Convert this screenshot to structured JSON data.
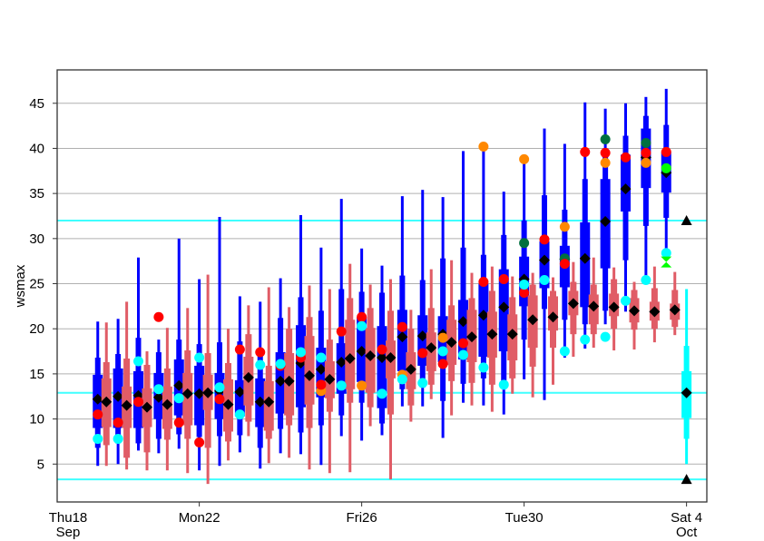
{
  "chart_data": {
    "type": "boxplot",
    "title": "",
    "ylabel": "wsmax",
    "xlabel": "",
    "ylim": [
      0.8,
      48.7
    ],
    "xlim": [
      "09-18T12",
      "10-04T12"
    ],
    "yticks": [
      5,
      10,
      15,
      20,
      25,
      30,
      35,
      40,
      45
    ],
    "xticks": [
      {
        "t": "09-18T12",
        "line1": "Thu18",
        "line2": "Sep"
      },
      {
        "t": "09-22T00",
        "line1": "Mon22",
        "line2": ""
      },
      {
        "t": "09-26T00",
        "line1": "Fri26",
        "line2": ""
      },
      {
        "t": "09-30T00",
        "line1": "Tue30",
        "line2": ""
      },
      {
        "t": "10-04T00",
        "line1": "Sat 4",
        "line2": "Oct"
      }
    ],
    "grid": true,
    "box_stat_order": [
      "min",
      "p10",
      "p25",
      "median",
      "p75",
      "p90",
      "max"
    ],
    "colors": {
      "blue_box": "#0000ff",
      "red_box": "#e05c66",
      "climate": "#00ffff",
      "median": "#000000",
      "red_dot": "#ff0000",
      "cyan_dot": "#00ffff",
      "orange_dot": "#ff8800",
      "darkgreen_dot": "#007040",
      "green_dot": "#00ff00",
      "grid": "#b0b0b0"
    },
    "reference_lines": [
      32.0,
      12.9,
      3.3
    ],
    "climate_box": {
      "t": "10-04T00",
      "stats": [
        5.0,
        7.8,
        10.1,
        12.9,
        15.3,
        18.1,
        24.4
      ],
      "triangles": [
        32.0,
        3.3
      ]
    },
    "boxes": [
      {
        "t": "09-19T12",
        "blue": [
          4.8,
          6.8,
          9.0,
          12.2,
          14.9,
          16.8,
          20.8
        ],
        "red": [
          4.8,
          7.1,
          9.1,
          11.9,
          14.5,
          16.3,
          20.7
        ],
        "markers": {
          "red": 10.5,
          "cyan": 7.8
        }
      },
      {
        "t": "09-20T00",
        "blue": [
          5.0,
          7.3,
          9.0,
          12.5,
          15.6,
          17.2,
          21.1
        ],
        "red": [
          4.4,
          5.7,
          9.0,
          11.5,
          13.6,
          16.7,
          23.0
        ],
        "markers": {
          "red": 9.6,
          "cyan": 7.8
        }
      },
      {
        "t": "09-20T12",
        "blue": [
          6.5,
          7.3,
          9.0,
          12.6,
          15.3,
          19.0,
          27.9
        ],
        "red": [
          4.3,
          6.3,
          9.1,
          11.3,
          13.4,
          16.0,
          17.5
        ],
        "markers": {
          "red": 11.9,
          "cyan": 16.4
        }
      },
      {
        "t": "09-21T00",
        "blue": [
          6.2,
          7.8,
          10.0,
          12.4,
          15.1,
          17.4,
          18.8
        ],
        "red": [
          4.3,
          7.7,
          8.9,
          11.6,
          13.6,
          15.6,
          20.1
        ],
        "markers": {
          "red": 21.3,
          "cyan": 13.3
        }
      },
      {
        "t": "09-21T12",
        "blue": [
          6.7,
          8.3,
          10.4,
          13.7,
          16.6,
          18.8,
          30.0
        ],
        "red": [
          4.0,
          7.8,
          9.3,
          12.8,
          15.1,
          17.6,
          22.3
        ],
        "markers": {
          "red": 9.6,
          "cyan": 12.3
        }
      },
      {
        "t": "09-22T00",
        "blue": [
          4.3,
          8.0,
          9.3,
          12.8,
          15.9,
          18.3,
          25.5
        ],
        "red": [
          2.8,
          6.8,
          11.0,
          12.9,
          14.9,
          17.3,
          26.0
        ],
        "markers": {
          "red": 7.4,
          "cyan": 16.8
        }
      },
      {
        "t": "09-22T12",
        "blue": [
          4.8,
          8.1,
          10.0,
          13.1,
          15.1,
          18.5,
          32.4
        ],
        "red": [
          5.4,
          7.5,
          8.6,
          11.6,
          14.4,
          16.2,
          20.0
        ],
        "markers": {
          "red": 12.2,
          "cyan": 13.5
        }
      },
      {
        "t": "09-23T00",
        "blue": [
          6.3,
          8.2,
          10.3,
          13.0,
          14.3,
          18.6,
          23.6
        ],
        "red": [
          8.1,
          9.7,
          11.5,
          14.6,
          16.9,
          19.4,
          22.6
        ],
        "markers": {
          "red": 17.7,
          "cyan": 10.5
        }
      },
      {
        "t": "09-23T12",
        "blue": [
          4.5,
          6.8,
          9.1,
          11.9,
          14.5,
          17.0,
          23.0
        ],
        "red": [
          5.1,
          7.8,
          8.7,
          11.9,
          14.2,
          15.9,
          24.6
        ],
        "markers": {
          "red": 17.4,
          "cyan": 16.0
        }
      },
      {
        "t": "09-24T00",
        "blue": [
          6.2,
          8.9,
          10.6,
          14.2,
          17.4,
          21.2,
          25.6
        ],
        "red": [
          5.7,
          9.3,
          10.4,
          14.2,
          17.3,
          20.0,
          22.4
        ],
        "markers": {
          "red": 15.9,
          "cyan": 16.1
        }
      },
      {
        "t": "09-24T12",
        "blue": [
          6.1,
          8.5,
          11.3,
          16.2,
          20.4,
          23.5,
          32.6
        ],
        "red": [
          4.4,
          9.0,
          11.6,
          14.8,
          19.2,
          21.3,
          24.8
        ],
        "markers": {
          "red": 16.8,
          "cyan": 17.4
        }
      },
      {
        "t": "09-25T00",
        "blue": [
          4.9,
          9.3,
          12.4,
          15.5,
          17.9,
          22.0,
          29.0
        ],
        "red": [
          4.0,
          10.8,
          12.3,
          14.4,
          16.4,
          18.8,
          24.4
        ],
        "markers": {
          "orange": 13.1,
          "red": 13.8,
          "cyan": 16.8
        }
      },
      {
        "t": "09-25T12",
        "blue": [
          8.1,
          10.4,
          12.8,
          16.3,
          18.4,
          24.4,
          34.4
        ],
        "red": [
          4.1,
          11.8,
          13.3,
          16.7,
          21.0,
          23.4,
          27.2
        ],
        "markers": {
          "red": 19.7,
          "cyan": 13.7
        }
      },
      {
        "t": "09-26T00",
        "blue": [
          7.6,
          11.8,
          14.1,
          17.5,
          21.3,
          24.1,
          28.9
        ],
        "red": [
          9.2,
          11.3,
          12.9,
          17.0,
          20.1,
          22.3,
          24.9
        ],
        "markers": {
          "orange": 13.7,
          "red": 21.3,
          "cyan": 20.3
        }
      },
      {
        "t": "09-26T12",
        "blue": [
          8.2,
          9.5,
          11.2,
          16.8,
          20.3,
          24.0,
          27.0
        ],
        "red": [
          3.3,
          10.5,
          14.5,
          16.8,
          18.7,
          22.0,
          25.5
        ],
        "markers": {
          "red": 17.7,
          "cyan": 12.8
        }
      },
      {
        "t": "09-27T00",
        "blue": [
          11.4,
          13.3,
          15.3,
          19.1,
          22.1,
          25.9,
          34.7
        ],
        "red": [
          9.7,
          11.5,
          13.3,
          15.5,
          17.4,
          20.0,
          22.1
        ],
        "markers": {
          "orange": 14.9,
          "red": 20.2,
          "cyan": 14.4
        }
      },
      {
        "t": "09-27T12",
        "blue": [
          11.4,
          13.5,
          15.9,
          19.2,
          21.5,
          25.4,
          35.4
        ],
        "red": [
          12.2,
          13.8,
          15.3,
          17.9,
          19.6,
          22.3,
          26.6
        ],
        "markers": {
          "red": 17.3,
          "cyan": 14.0
        }
      },
      {
        "t": "09-28T00",
        "blue": [
          7.9,
          12.0,
          16.3,
          19.4,
          21.4,
          27.8,
          34.6
        ],
        "red": [
          10.4,
          14.2,
          16.0,
          18.5,
          21.0,
          22.6,
          27.6
        ],
        "markers": {
          "orange": 19.0,
          "red": 16.1,
          "cyan": 17.5
        }
      },
      {
        "t": "09-28T12",
        "blue": [
          11.8,
          13.9,
          16.6,
          20.8,
          23.2,
          29.0,
          39.7
        ],
        "red": [
          11.5,
          14.0,
          16.3,
          19.1,
          22.1,
          23.4,
          26.2
        ],
        "markers": {
          "red": 18.4,
          "cyan": 17.1
        }
      },
      {
        "t": "09-29T00",
        "blue": [
          11.5,
          14.5,
          16.9,
          21.5,
          25.0,
          28.2,
          40.2
        ],
        "red": [
          10.8,
          13.8,
          16.8,
          19.4,
          21.9,
          24.2,
          26.9
        ],
        "markers": {
          "orange": 40.2,
          "red": 25.2,
          "cyan": 15.7
        }
      },
      {
        "t": "09-29T12",
        "blue": [
          10.5,
          14.0,
          17.5,
          22.4,
          26.6,
          30.4,
          35.2
        ],
        "red": [
          12.8,
          14.5,
          16.5,
          19.4,
          21.6,
          23.5,
          25.8
        ],
        "markers": {
          "red": 25.5,
          "cyan": 13.8
        }
      },
      {
        "t": "09-30T00",
        "blue": [
          14.4,
          18.8,
          22.5,
          25.5,
          28.0,
          32.0,
          38.8
        ],
        "red": [
          12.4,
          15.8,
          17.9,
          21.0,
          23.7,
          24.9,
          26.2
        ],
        "markers": {
          "orange": 38.8,
          "darkgreen": 29.5,
          "red": 24.0,
          "cyan": 24.9
        }
      },
      {
        "t": "09-30T12",
        "blue": [
          12.1,
          22.2,
          24.5,
          27.6,
          29.7,
          34.8,
          42.2
        ],
        "red": [
          13.8,
          17.9,
          19.8,
          21.3,
          23.6,
          24.2,
          25.7
        ],
        "markers": {
          "red": 29.9,
          "cyan": 25.4
        }
      },
      {
        "t": "10-01T00",
        "blue": [
          16.8,
          21.0,
          24.6,
          27.7,
          29.2,
          33.2,
          40.5
        ],
        "red": [
          16.9,
          19.4,
          21.5,
          22.8,
          24.2,
          25.2,
          27.4
        ],
        "markers": {
          "orange": 31.3,
          "darkgreen": 27.8,
          "red": 27.2,
          "cyan": 17.5
        }
      },
      {
        "t": "10-01T12",
        "blue": [
          17.8,
          20.5,
          22.4,
          27.8,
          31.8,
          36.6,
          45.1
        ],
        "red": [
          17.9,
          19.4,
          20.5,
          22.5,
          23.8,
          24.9,
          27.9
        ],
        "markers": {
          "red": 39.6,
          "cyan": 18.8
        }
      },
      {
        "t": "10-02T00",
        "blue": [
          20.5,
          22.0,
          26.7,
          31.9,
          36.6,
          40.0,
          44.4
        ],
        "red": [
          17.6,
          20.0,
          21.4,
          22.4,
          23.9,
          25.5,
          26.8
        ],
        "markers": {
          "darkgreen": 41.0,
          "orange": 38.4,
          "red": 39.5,
          "cyan": 19.1
        }
      },
      {
        "t": "10-02T12",
        "blue": [
          21.9,
          27.6,
          33.0,
          35.5,
          39.3,
          41.4,
          45.0
        ],
        "red": [
          17.7,
          19.9,
          20.7,
          22.0,
          23.4,
          24.3,
          25.2
        ],
        "markers": {
          "red": 39.0,
          "cyan": 23.1
        }
      },
      {
        "t": "10-03T00",
        "blue": [
          25.4,
          31.4,
          35.6,
          39.0,
          42.2,
          43.6,
          45.7
        ],
        "red": [
          18.5,
          20.0,
          20.9,
          21.9,
          23.0,
          24.5,
          26.9
        ],
        "markers": {
          "darkgreen": 40.6,
          "orange": 38.4,
          "red": 39.5,
          "cyan": 25.4
        }
      },
      {
        "t": "10-03T12",
        "blue": [
          27.9,
          32.3,
          35.1,
          37.3,
          39.6,
          42.6,
          46.6
        ],
        "red": [
          19.3,
          20.2,
          21.0,
          22.1,
          22.8,
          24.3,
          26.3
        ],
        "markers": {
          "red": 39.6,
          "green": 37.8,
          "cyan": 28.4,
          "green_bowtie": 27.4
        }
      }
    ]
  }
}
